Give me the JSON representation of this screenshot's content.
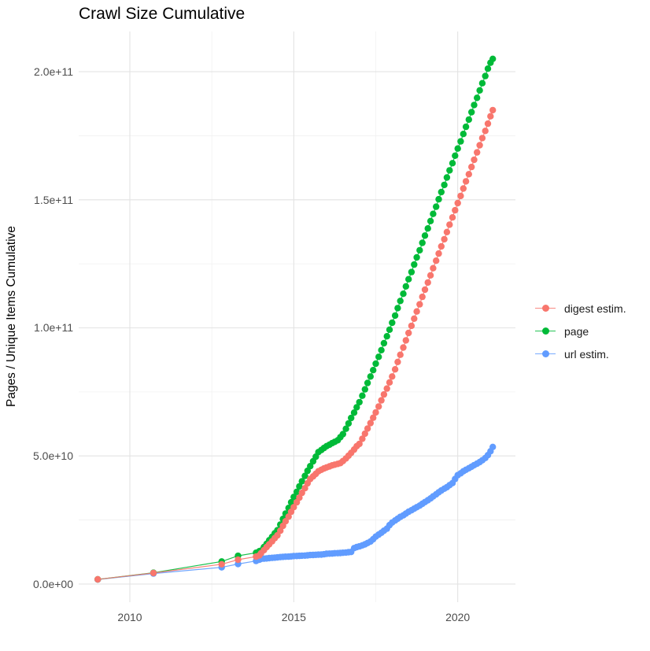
{
  "title": "Crawl Size Cumulative",
  "y_axis": {
    "label": "Pages / Unique Items Cumulative",
    "ticks": [
      {
        "label": "0.0e+00",
        "value": 0
      },
      {
        "label": "5.0e+10",
        "value": 50
      },
      {
        "label": "1.0e+11",
        "value": 100
      },
      {
        "label": "1.5e+11",
        "value": 150
      },
      {
        "label": "2.0e+11",
        "value": 200
      }
    ]
  },
  "x_axis": {
    "ticks": [
      {
        "label": "2010",
        "value": 2010
      },
      {
        "label": "2015",
        "value": 2015
      },
      {
        "label": "2020",
        "value": 2020
      }
    ]
  },
  "legend": {
    "items": [
      {
        "label": "digest estim.",
        "color": "#F8766D"
      },
      {
        "label": "page",
        "color": "#00BA38"
      },
      {
        "label": "url estim.",
        "color": "#619CFF"
      }
    ]
  },
  "chart_data": {
    "type": "line",
    "title": "Crawl Size Cumulative",
    "xlabel": "",
    "ylabel": "Pages / Unique Items Cumulative",
    "unit_note": "y values in billions (1e9); axis shows scientific notation up to 2.0e+11",
    "x_range": [
      2008.44,
      2021.76
    ],
    "y_range": [
      -7.1,
      215.7
    ],
    "grid": {
      "major_x": [
        2010,
        2015,
        2020
      ],
      "minor_x": [
        2012.5,
        2017.5
      ],
      "major_y": [
        0,
        50,
        100,
        150,
        200
      ],
      "minor_y": [
        25,
        75,
        125,
        175
      ]
    },
    "legend_position": "right",
    "series": [
      {
        "name": "digest estim.",
        "color": "#F8766D",
        "points": [
          [
            2009.02,
            1.8
          ],
          [
            2010.72,
            4.3
          ],
          [
            2012.8,
            7.7
          ],
          [
            2013.3,
            9.5
          ],
          [
            2013.85,
            10.7
          ],
          [
            2013.95,
            11.2
          ],
          [
            2014.0,
            12.0
          ],
          [
            2014.09,
            13.2
          ],
          [
            2014.17,
            14.4
          ],
          [
            2014.25,
            15.5
          ],
          [
            2014.34,
            16.7
          ],
          [
            2014.42,
            17.9
          ],
          [
            2014.5,
            19.0
          ],
          [
            2014.59,
            20.8
          ],
          [
            2014.67,
            22.7
          ],
          [
            2014.75,
            24.5
          ],
          [
            2014.84,
            26.3
          ],
          [
            2014.92,
            28.2
          ],
          [
            2015.0,
            30.0
          ],
          [
            2015.09,
            31.9
          ],
          [
            2015.17,
            33.7
          ],
          [
            2015.25,
            35.6
          ],
          [
            2015.34,
            37.4
          ],
          [
            2015.42,
            39.3
          ],
          [
            2015.5,
            41.0
          ],
          [
            2015.59,
            42.0
          ],
          [
            2015.67,
            43.0
          ],
          [
            2015.75,
            44.0
          ],
          [
            2015.84,
            44.6
          ],
          [
            2015.92,
            45.1
          ],
          [
            2016.0,
            45.5
          ],
          [
            2016.09,
            45.9
          ],
          [
            2016.17,
            46.3
          ],
          [
            2016.25,
            46.6
          ],
          [
            2016.34,
            46.9
          ],
          [
            2016.42,
            47.2
          ],
          [
            2016.5,
            48.0
          ],
          [
            2016.59,
            49.0
          ],
          [
            2016.67,
            50.1
          ],
          [
            2016.75,
            51.2
          ],
          [
            2016.84,
            52.5
          ],
          [
            2016.92,
            53.8
          ],
          [
            2017.0,
            54.7
          ],
          [
            2017.09,
            56.7
          ],
          [
            2017.17,
            58.7
          ],
          [
            2017.25,
            60.7
          ],
          [
            2017.34,
            62.8
          ],
          [
            2017.42,
            64.9
          ],
          [
            2017.5,
            67.0
          ],
          [
            2017.59,
            69.3
          ],
          [
            2017.67,
            71.7
          ],
          [
            2017.75,
            74.0
          ],
          [
            2017.84,
            76.3
          ],
          [
            2017.92,
            78.7
          ],
          [
            2018.0,
            81.0
          ],
          [
            2018.09,
            83.8
          ],
          [
            2018.17,
            86.7
          ],
          [
            2018.25,
            89.5
          ],
          [
            2018.34,
            92.3
          ],
          [
            2018.42,
            95.1
          ],
          [
            2018.5,
            98.0
          ],
          [
            2018.59,
            100.8
          ],
          [
            2018.67,
            103.6
          ],
          [
            2018.75,
            106.4
          ],
          [
            2018.84,
            109.2
          ],
          [
            2018.92,
            112.1
          ],
          [
            2019.0,
            114.9
          ],
          [
            2019.09,
            117.7
          ],
          [
            2019.17,
            120.5
          ],
          [
            2019.25,
            123.3
          ],
          [
            2019.34,
            126.2
          ],
          [
            2019.42,
            129.0
          ],
          [
            2019.5,
            131.8
          ],
          [
            2019.59,
            134.6
          ],
          [
            2019.67,
            137.4
          ],
          [
            2019.75,
            140.3
          ],
          [
            2019.84,
            143.1
          ],
          [
            2019.92,
            145.9
          ],
          [
            2020.0,
            148.7
          ],
          [
            2020.09,
            151.5
          ],
          [
            2020.17,
            154.4
          ],
          [
            2020.25,
            157.2
          ],
          [
            2020.34,
            160.0
          ],
          [
            2020.42,
            162.8
          ],
          [
            2020.5,
            165.6
          ],
          [
            2020.59,
            168.5
          ],
          [
            2020.67,
            171.3
          ],
          [
            2020.75,
            174.1
          ],
          [
            2020.84,
            176.9
          ],
          [
            2020.92,
            179.7
          ],
          [
            2021.0,
            182.6
          ],
          [
            2021.07,
            185.0
          ]
        ]
      },
      {
        "name": "page",
        "color": "#00BA38",
        "points": [
          [
            2009.02,
            1.8
          ],
          [
            2010.72,
            4.4
          ],
          [
            2012.8,
            8.8
          ],
          [
            2013.3,
            11.0
          ],
          [
            2013.85,
            12.2
          ],
          [
            2013.95,
            12.8
          ],
          [
            2014.0,
            13.0
          ],
          [
            2014.09,
            14.4
          ],
          [
            2014.17,
            15.7
          ],
          [
            2014.25,
            17.1
          ],
          [
            2014.34,
            18.4
          ],
          [
            2014.42,
            19.8
          ],
          [
            2014.5,
            21.0
          ],
          [
            2014.59,
            23.2
          ],
          [
            2014.67,
            25.4
          ],
          [
            2014.75,
            27.5
          ],
          [
            2014.84,
            29.7
          ],
          [
            2014.92,
            31.9
          ],
          [
            2015.0,
            34.0
          ],
          [
            2015.09,
            36.0
          ],
          [
            2015.17,
            38.1
          ],
          [
            2015.25,
            40.1
          ],
          [
            2015.34,
            42.2
          ],
          [
            2015.42,
            44.2
          ],
          [
            2015.5,
            46.0
          ],
          [
            2015.59,
            47.9
          ],
          [
            2015.67,
            49.7
          ],
          [
            2015.75,
            51.5
          ],
          [
            2015.84,
            52.3
          ],
          [
            2015.92,
            53.1
          ],
          [
            2016.0,
            53.8
          ],
          [
            2016.09,
            54.4
          ],
          [
            2016.17,
            55.0
          ],
          [
            2016.25,
            55.5
          ],
          [
            2016.34,
            56.1
          ],
          [
            2016.42,
            57.3
          ],
          [
            2016.5,
            58.5
          ],
          [
            2016.59,
            60.6
          ],
          [
            2016.67,
            62.7
          ],
          [
            2016.75,
            64.8
          ],
          [
            2016.84,
            66.9
          ],
          [
            2016.92,
            69.0
          ],
          [
            2017.0,
            71.0
          ],
          [
            2017.09,
            73.5
          ],
          [
            2017.17,
            76.0
          ],
          [
            2017.25,
            78.5
          ],
          [
            2017.34,
            81.0
          ],
          [
            2017.42,
            83.5
          ],
          [
            2017.5,
            86.0
          ],
          [
            2017.59,
            88.7
          ],
          [
            2017.67,
            91.3
          ],
          [
            2017.75,
            94.0
          ],
          [
            2017.84,
            96.7
          ],
          [
            2017.92,
            99.3
          ],
          [
            2018.0,
            102.0
          ],
          [
            2018.09,
            104.8
          ],
          [
            2018.17,
            107.7
          ],
          [
            2018.25,
            110.5
          ],
          [
            2018.34,
            113.3
          ],
          [
            2018.42,
            116.2
          ],
          [
            2018.5,
            119.0
          ],
          [
            2018.59,
            121.8
          ],
          [
            2018.67,
            124.7
          ],
          [
            2018.75,
            127.5
          ],
          [
            2018.84,
            130.3
          ],
          [
            2018.92,
            133.2
          ],
          [
            2019.0,
            136.0
          ],
          [
            2019.09,
            138.8
          ],
          [
            2019.17,
            141.7
          ],
          [
            2019.25,
            144.5
          ],
          [
            2019.34,
            147.3
          ],
          [
            2019.42,
            150.2
          ],
          [
            2019.5,
            153.0
          ],
          [
            2019.59,
            155.8
          ],
          [
            2019.67,
            158.7
          ],
          [
            2019.75,
            161.5
          ],
          [
            2019.84,
            164.3
          ],
          [
            2019.92,
            167.2
          ],
          [
            2020.0,
            170.0
          ],
          [
            2020.09,
            172.8
          ],
          [
            2020.17,
            175.7
          ],
          [
            2020.25,
            178.5
          ],
          [
            2020.34,
            181.3
          ],
          [
            2020.42,
            184.2
          ],
          [
            2020.5,
            187.0
          ],
          [
            2020.59,
            189.8
          ],
          [
            2020.67,
            192.7
          ],
          [
            2020.75,
            195.5
          ],
          [
            2020.84,
            198.3
          ],
          [
            2020.92,
            201.2
          ],
          [
            2021.0,
            203.5
          ],
          [
            2021.07,
            205.0
          ]
        ]
      },
      {
        "name": "url estim.",
        "color": "#619CFF",
        "points": [
          [
            2009.02,
            1.75
          ],
          [
            2010.72,
            4.1
          ],
          [
            2012.8,
            6.5
          ],
          [
            2013.3,
            7.8
          ],
          [
            2013.85,
            9.0
          ],
          [
            2013.95,
            9.5
          ],
          [
            2014.0,
            9.8
          ],
          [
            2014.09,
            9.9
          ],
          [
            2014.17,
            10.0
          ],
          [
            2014.25,
            10.1
          ],
          [
            2014.34,
            10.2
          ],
          [
            2014.42,
            10.3
          ],
          [
            2014.5,
            10.4
          ],
          [
            2014.59,
            10.5
          ],
          [
            2014.67,
            10.6
          ],
          [
            2014.75,
            10.65
          ],
          [
            2014.84,
            10.7
          ],
          [
            2014.92,
            10.8
          ],
          [
            2015.0,
            10.9
          ],
          [
            2015.09,
            10.95
          ],
          [
            2015.17,
            11.0
          ],
          [
            2015.25,
            11.05
          ],
          [
            2015.34,
            11.1
          ],
          [
            2015.42,
            11.2
          ],
          [
            2015.5,
            11.3
          ],
          [
            2015.59,
            11.35
          ],
          [
            2015.67,
            11.4
          ],
          [
            2015.75,
            11.45
          ],
          [
            2015.84,
            11.5
          ],
          [
            2015.92,
            11.6
          ],
          [
            2016.0,
            11.8
          ],
          [
            2016.09,
            11.85
          ],
          [
            2016.17,
            11.9
          ],
          [
            2016.25,
            12.0
          ],
          [
            2016.34,
            12.05
          ],
          [
            2016.42,
            12.1
          ],
          [
            2016.5,
            12.2
          ],
          [
            2016.59,
            12.3
          ],
          [
            2016.67,
            12.4
          ],
          [
            2016.75,
            12.5
          ],
          [
            2016.84,
            14.0
          ],
          [
            2016.92,
            14.4
          ],
          [
            2017.0,
            14.7
          ],
          [
            2017.09,
            15.1
          ],
          [
            2017.17,
            15.5
          ],
          [
            2017.25,
            16.0
          ],
          [
            2017.34,
            16.6
          ],
          [
            2017.42,
            17.5
          ],
          [
            2017.5,
            18.5
          ],
          [
            2017.59,
            19.3
          ],
          [
            2017.67,
            20.0
          ],
          [
            2017.75,
            20.8
          ],
          [
            2017.84,
            21.6
          ],
          [
            2017.92,
            23.0
          ],
          [
            2018.0,
            24.0
          ],
          [
            2018.09,
            24.8
          ],
          [
            2018.17,
            25.5
          ],
          [
            2018.25,
            26.2
          ],
          [
            2018.34,
            26.8
          ],
          [
            2018.42,
            27.5
          ],
          [
            2018.5,
            28.2
          ],
          [
            2018.59,
            28.8
          ],
          [
            2018.67,
            29.4
          ],
          [
            2018.75,
            30.0
          ],
          [
            2018.84,
            30.6
          ],
          [
            2018.92,
            31.3
          ],
          [
            2019.0,
            32.0
          ],
          [
            2019.09,
            32.7
          ],
          [
            2019.17,
            33.4
          ],
          [
            2019.25,
            34.2
          ],
          [
            2019.34,
            35.0
          ],
          [
            2019.42,
            35.8
          ],
          [
            2019.5,
            36.5
          ],
          [
            2019.59,
            37.2
          ],
          [
            2019.67,
            37.8
          ],
          [
            2019.75,
            38.6
          ],
          [
            2019.84,
            39.4
          ],
          [
            2019.92,
            41.0
          ],
          [
            2020.0,
            42.5
          ],
          [
            2020.09,
            43.2
          ],
          [
            2020.17,
            44.0
          ],
          [
            2020.25,
            44.6
          ],
          [
            2020.34,
            45.2
          ],
          [
            2020.42,
            45.8
          ],
          [
            2020.5,
            46.4
          ],
          [
            2020.59,
            47.0
          ],
          [
            2020.67,
            47.6
          ],
          [
            2020.75,
            48.3
          ],
          [
            2020.84,
            49.2
          ],
          [
            2020.92,
            50.3
          ],
          [
            2021.0,
            51.8
          ],
          [
            2021.07,
            53.5
          ]
        ]
      }
    ]
  }
}
